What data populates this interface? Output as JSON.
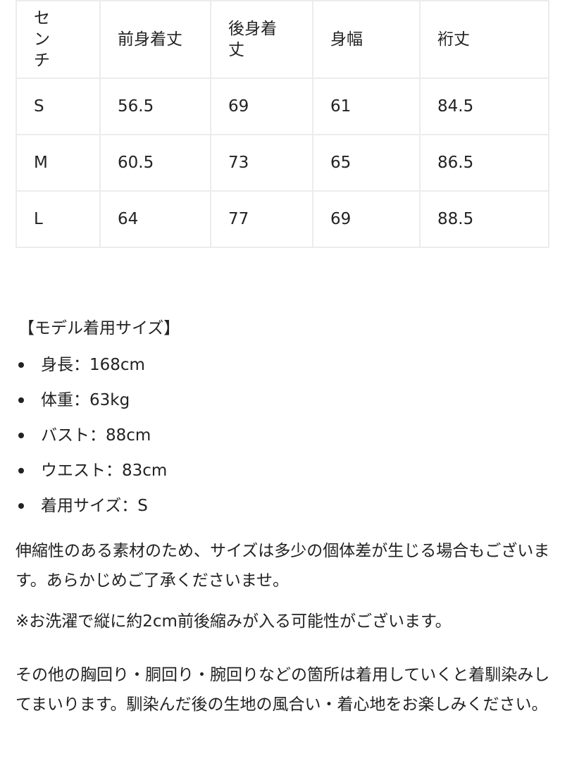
{
  "size_table": {
    "headers": [
      "センチ",
      "前身着丈",
      "後身着丈",
      "身幅",
      "裄丈"
    ],
    "rows": [
      [
        "S",
        "56.5",
        "69",
        "61",
        "84.5"
      ],
      [
        "M",
        "60.5",
        "73",
        "65",
        "86.5"
      ],
      [
        "L",
        "64",
        "77",
        "69",
        "88.5"
      ]
    ]
  },
  "model": {
    "heading": "【モデル着用サイズ】",
    "items": [
      "身長：168cm",
      "体重：63kg",
      "バスト：88cm",
      "ウエスト：83cm",
      "着用サイズ：S"
    ]
  },
  "notes": {
    "stretch": "伸縮性のある素材のため、サイズは多少の個体差が生じる場合もございます。あらかじめご了承くださいませ。",
    "wash": "※お洗濯で縦に約2cm前後縮みが入る可能性がございます。",
    "fit": "その他の胸回り・胴回り・腕回りなどの箇所は着用していくと着馴染みしてまいります。馴染んだ後の生地の風合い・着心地をお楽しみください。"
  }
}
